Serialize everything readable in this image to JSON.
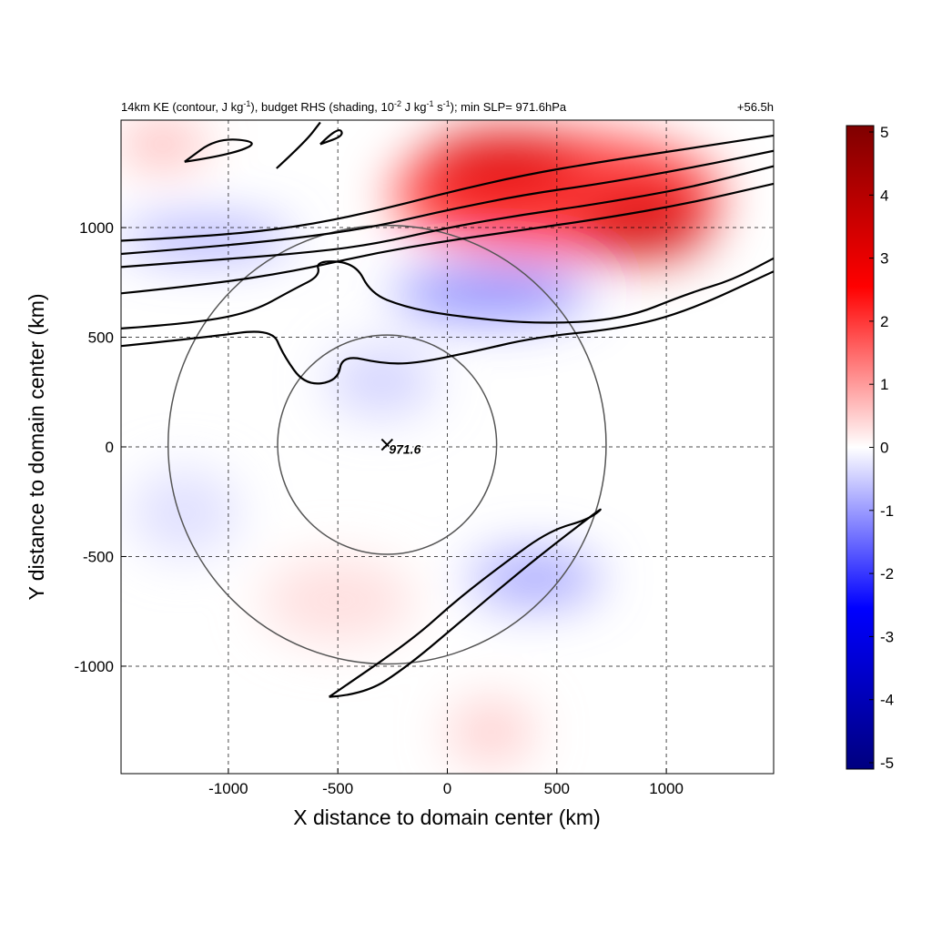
{
  "chart_data": {
    "type": "heatmap",
    "title": {
      "base": "14km KE (contour, J kg",
      "exp1": "-1",
      "mid1": "), budget RHS (shading, 10",
      "exp2": "-2",
      "mid2": " J kg",
      "exp3": "-1",
      "mid3": " s",
      "exp4": "-1",
      "tail": "); min SLP= 971.6hPa"
    },
    "time_label": "+56.5h",
    "xlabel": "X distance to domain center (km)",
    "ylabel": "Y distance to domain center (km)",
    "xlim": [
      -1490,
      1490
    ],
    "ylim": [
      -1490,
      1490
    ],
    "xticks": [
      -1000,
      -500,
      0,
      500,
      1000
    ],
    "xtick_labels": [
      "-1000",
      "-500",
      "0",
      "500",
      "1000"
    ],
    "yticks": [
      -1000,
      -500,
      0,
      500,
      1000
    ],
    "ytick_labels": [
      "-1000",
      "-500",
      "0",
      "500",
      "1000"
    ],
    "grid": true,
    "colorbar": {
      "min": -5,
      "max": 5,
      "ticks": [
        5,
        4,
        3,
        2,
        1,
        0,
        -1,
        -2,
        -3,
        -4,
        -5
      ],
      "tick_labels": [
        "5",
        "4",
        "3",
        "2",
        "1",
        "0",
        "-1",
        "-2",
        "-3",
        "-4",
        "-5"
      ],
      "colormap": [
        "#00007f",
        "#0000ff",
        "#ffffff",
        "#ff0000",
        "#7f0000"
      ]
    },
    "storm_center": {
      "x": -275,
      "y": 10,
      "label": "971.6"
    },
    "range_circles_km": [
      500,
      1000
    ],
    "shading_regions": [
      {
        "x": 500,
        "y": 1150,
        "rx": 750,
        "ry": 280,
        "value": 2.5
      },
      {
        "x": 900,
        "y": 1000,
        "rx": 300,
        "ry": 150,
        "value": 3.5
      },
      {
        "x": 250,
        "y": 1300,
        "rx": 350,
        "ry": 150,
        "value": 3.2
      },
      {
        "x": 200,
        "y": 700,
        "rx": 450,
        "ry": 120,
        "value": -1.5
      },
      {
        "x": -1100,
        "y": 950,
        "rx": 400,
        "ry": 80,
        "value": -1.2
      },
      {
        "x": -1300,
        "y": 1380,
        "rx": 200,
        "ry": 80,
        "value": 1.2
      },
      {
        "x": -300,
        "y": 300,
        "rx": 250,
        "ry": 150,
        "value": -0.6
      },
      {
        "x": 400,
        "y": -600,
        "rx": 300,
        "ry": 120,
        "value": -1.2
      },
      {
        "x": -500,
        "y": -700,
        "rx": 350,
        "ry": 200,
        "value": 0.4
      },
      {
        "x": -1200,
        "y": -300,
        "rx": 250,
        "ry": 200,
        "value": -0.4
      },
      {
        "x": 200,
        "y": -1300,
        "rx": 200,
        "ry": 150,
        "value": 0.6
      }
    ],
    "ke_contours": [
      [
        [
          -1490,
          700
        ],
        [
          -1100,
          740
        ],
        [
          -700,
          800
        ],
        [
          -350,
          880
        ],
        [
          0,
          940
        ],
        [
          350,
          990
        ],
        [
          700,
          1040
        ],
        [
          1100,
          1110
        ],
        [
          1490,
          1200
        ]
      ],
      [
        [
          -1490,
          820
        ],
        [
          -1100,
          850
        ],
        [
          -700,
          880
        ],
        [
          -350,
          920
        ],
        [
          0,
          1000
        ],
        [
          350,
          1060
        ],
        [
          700,
          1110
        ],
        [
          1100,
          1180
        ],
        [
          1490,
          1280
        ]
      ],
      [
        [
          -1490,
          880
        ],
        [
          -1100,
          910
        ],
        [
          -700,
          950
        ],
        [
          -350,
          1000
        ],
        [
          0,
          1080
        ],
        [
          350,
          1150
        ],
        [
          700,
          1200
        ],
        [
          1100,
          1270
        ],
        [
          1490,
          1350
        ]
      ],
      [
        [
          -1490,
          940
        ],
        [
          -1100,
          960
        ],
        [
          -700,
          1000
        ],
        [
          -350,
          1070
        ],
        [
          0,
          1160
        ],
        [
          350,
          1240
        ],
        [
          700,
          1300
        ],
        [
          1100,
          1360
        ],
        [
          1490,
          1420
        ]
      ],
      [
        [
          -1490,
          540
        ],
        [
          -1200,
          560
        ],
        [
          -900,
          610
        ],
        [
          -700,
          720
        ],
        [
          -580,
          780
        ],
        [
          -600,
          850
        ],
        [
          -420,
          840
        ],
        [
          -350,
          700
        ],
        [
          -200,
          640
        ],
        [
          0,
          600
        ],
        [
          400,
          560
        ],
        [
          800,
          580
        ],
        [
          1100,
          700
        ],
        [
          1300,
          760
        ],
        [
          1490,
          860
        ]
      ],
      [
        [
          -1490,
          460
        ],
        [
          -1100,
          500
        ],
        [
          -800,
          540
        ],
        [
          -750,
          420
        ],
        [
          -650,
          280
        ],
        [
          -500,
          300
        ],
        [
          -480,
          420
        ],
        [
          -300,
          380
        ],
        [
          -150,
          380
        ],
        [
          100,
          430
        ],
        [
          400,
          500
        ],
        [
          800,
          540
        ],
        [
          1100,
          620
        ],
        [
          1490,
          800
        ]
      ],
      [
        [
          -1200,
          1300
        ],
        [
          -1000,
          1330
        ],
        [
          -850,
          1390
        ],
        [
          -1050,
          1410
        ],
        [
          -1200,
          1300
        ]
      ],
      [
        [
          -780,
          1270
        ],
        [
          -650,
          1390
        ],
        [
          -580,
          1480
        ]
      ],
      [
        [
          -580,
          1380
        ],
        [
          -500,
          1460
        ],
        [
          -470,
          1420
        ],
        [
          -580,
          1380
        ]
      ],
      [
        [
          -1,
          0
        ]
      ],
      [
        [
          -540,
          -1140
        ],
        [
          -380,
          -1130
        ],
        [
          -180,
          -1000
        ],
        [
          80,
          -780
        ],
        [
          270,
          -620
        ],
        [
          480,
          -450
        ],
        [
          730,
          -260
        ],
        [
          650,
          -330
        ],
        [
          470,
          -380
        ],
        [
          260,
          -530
        ],
        [
          40,
          -700
        ],
        [
          -160,
          -880
        ],
        [
          -540,
          -1140
        ]
      ]
    ]
  }
}
